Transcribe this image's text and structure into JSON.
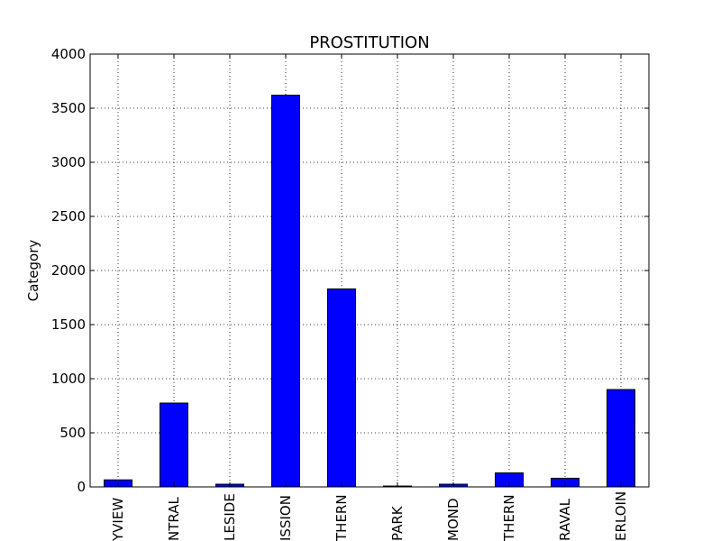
{
  "chart_data": {
    "type": "bar",
    "title": "PROSTITUTION",
    "xlabel": "",
    "ylabel": "Category",
    "categories": [
      "BAYVIEW",
      "CENTRAL",
      "INGLESIDE",
      "MISSION",
      "NORTHERN",
      "PARK",
      "RICHMOND",
      "SOUTHERN",
      "TARAVAL",
      "TENDERLOIN"
    ],
    "category_labels_visible": [
      "YVIEW",
      "NTRAL",
      "LESIDE",
      "ISSION",
      "THERN",
      "PARK",
      "MOND",
      "THERN",
      "RAVAL",
      "ERLOIN"
    ],
    "values": [
      65,
      775,
      25,
      3620,
      1830,
      8,
      25,
      130,
      80,
      900
    ],
    "ylim": [
      0,
      4000
    ],
    "yticks": [
      0,
      500,
      1000,
      1500,
      2000,
      2500,
      3000,
      3500,
      4000
    ],
    "grid": true,
    "bar_color": "#0000ff"
  }
}
